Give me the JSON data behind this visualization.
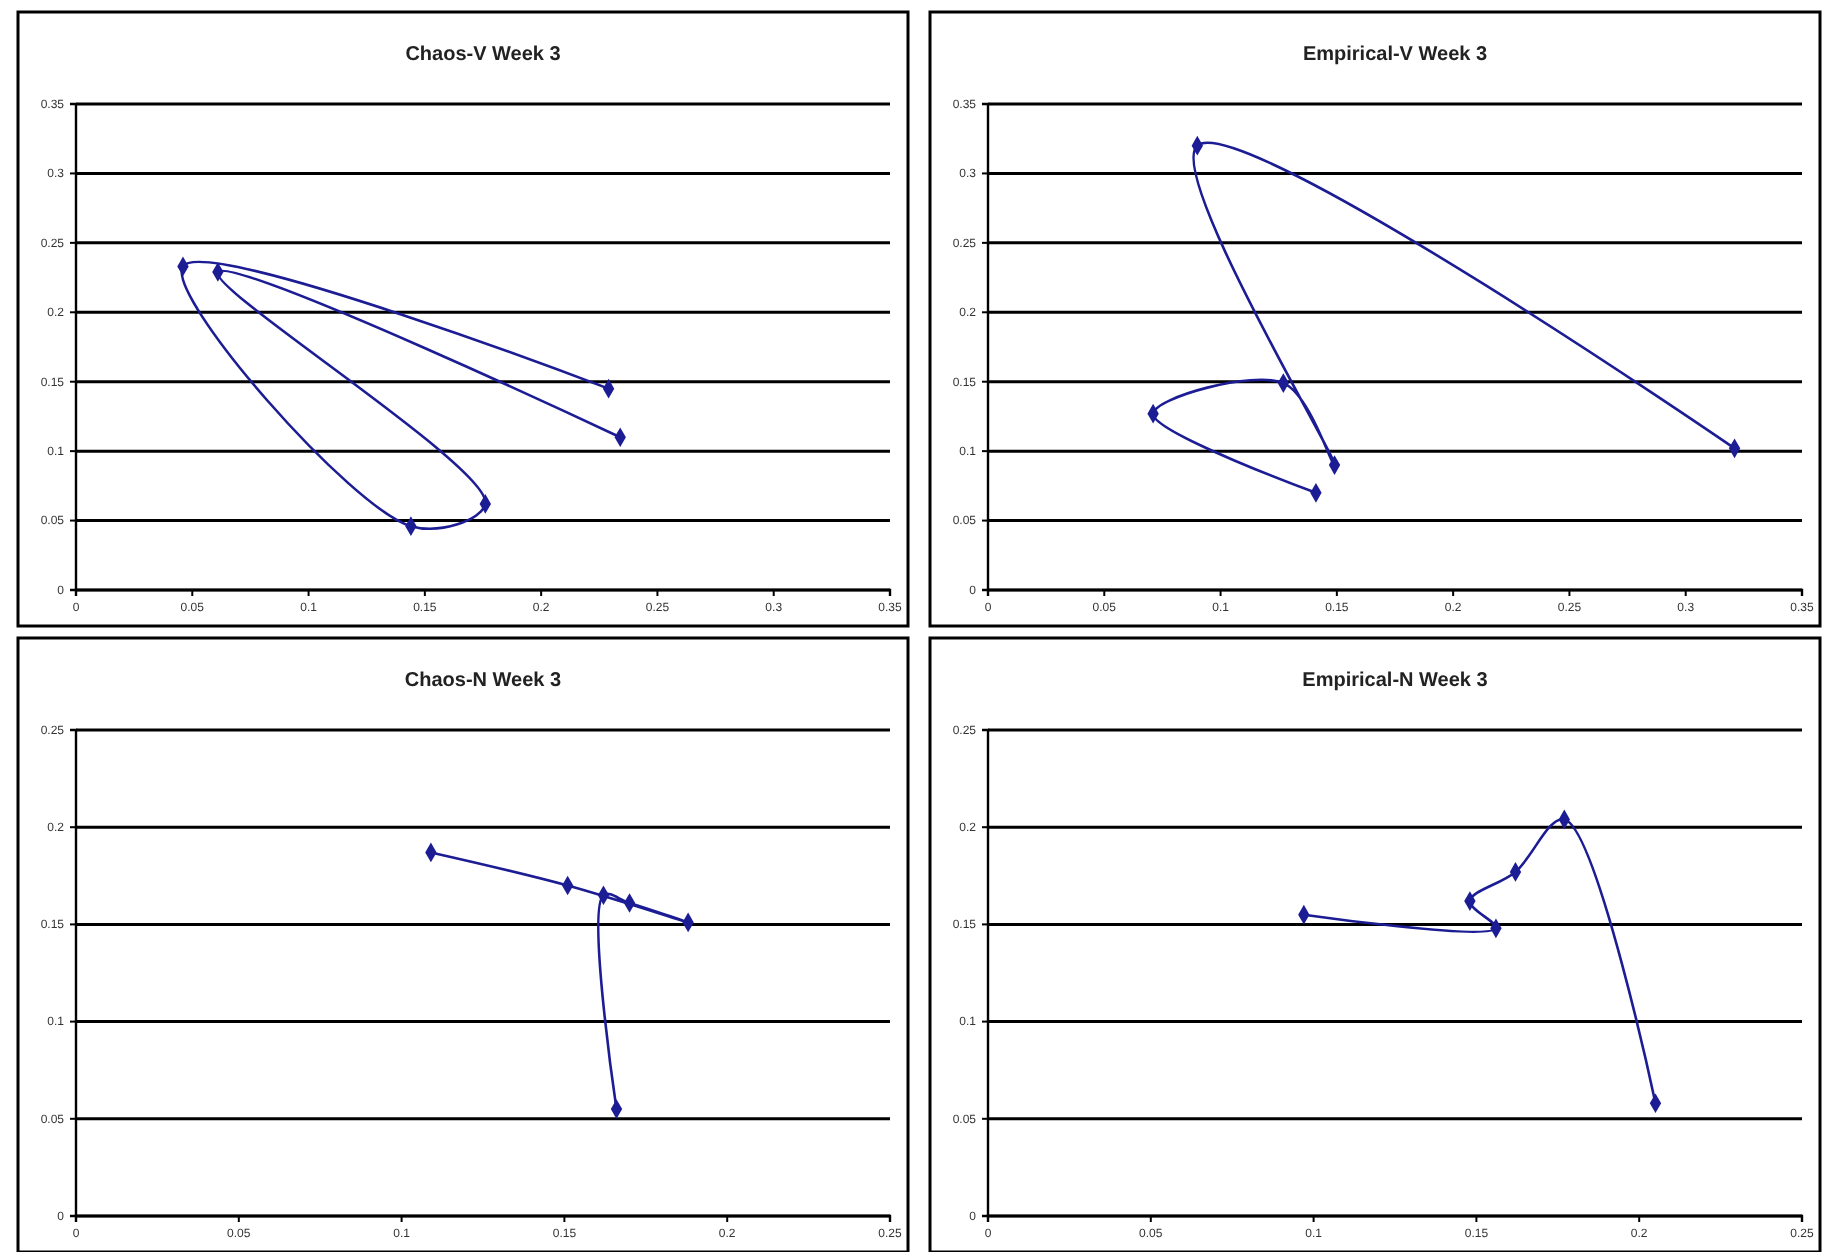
{
  "chart_data": [
    {
      "type": "line",
      "title": "Chaos-V Week 3",
      "marker": "diamond",
      "grid": "y",
      "xlim": [
        0,
        0.35
      ],
      "ylim": [
        0,
        0.35
      ],
      "xticks": [
        0,
        0.05,
        0.1,
        0.15,
        0.2,
        0.25,
        0.3,
        0.35
      ],
      "yticks": [
        0,
        0.05,
        0.1,
        0.15,
        0.2,
        0.25,
        0.3,
        0.35
      ],
      "series": [
        {
          "color": "#1c1c94",
          "x": [
            0.234,
            0.061,
            0.176,
            0.144,
            0.046,
            0.229
          ],
          "values": [
            0.11,
            0.229,
            0.062,
            0.046,
            0.233,
            0.145
          ]
        }
      ]
    },
    {
      "type": "line",
      "title": "Empirical-V Week 3",
      "marker": "diamond",
      "grid": "y",
      "xlim": [
        0,
        0.35
      ],
      "ylim": [
        0,
        0.35
      ],
      "xticks": [
        0,
        0.05,
        0.1,
        0.15,
        0.2,
        0.25,
        0.3,
        0.35
      ],
      "yticks": [
        0,
        0.05,
        0.1,
        0.15,
        0.2,
        0.25,
        0.3,
        0.35
      ],
      "series": [
        {
          "color": "#1c1c94",
          "x": [
            0.141,
            0.071,
            0.127,
            0.149,
            0.09,
            0.321
          ],
          "values": [
            0.07,
            0.127,
            0.149,
            0.09,
            0.32,
            0.102
          ]
        }
      ]
    },
    {
      "type": "line",
      "title": "Chaos-N Week 3",
      "marker": "diamond",
      "grid": "y",
      "xlim": [
        0,
        0.25
      ],
      "ylim": [
        0,
        0.25
      ],
      "xticks": [
        0,
        0.05,
        0.1,
        0.15,
        0.2,
        0.25
      ],
      "yticks": [
        0,
        0.05,
        0.1,
        0.15,
        0.2,
        0.25
      ],
      "series": [
        {
          "color": "#1c1c94",
          "x": [
            0.109,
            0.151,
            0.188,
            0.17,
            0.162,
            0.166
          ],
          "values": [
            0.187,
            0.17,
            0.151,
            0.161,
            0.165,
            0.055
          ]
        }
      ]
    },
    {
      "type": "line",
      "title": "Empirical-N Week 3",
      "marker": "diamond",
      "grid": "y",
      "xlim": [
        0,
        0.25
      ],
      "ylim": [
        0,
        0.25
      ],
      "xticks": [
        0,
        0.05,
        0.1,
        0.15,
        0.2,
        0.25
      ],
      "yticks": [
        0,
        0.05,
        0.1,
        0.15,
        0.2,
        0.25
      ],
      "series": [
        {
          "color": "#1c1c94",
          "x": [
            0.097,
            0.156,
            0.148,
            0.162,
            0.177,
            0.205
          ],
          "values": [
            0.155,
            0.148,
            0.162,
            0.177,
            0.204,
            0.058
          ]
        }
      ]
    }
  ]
}
